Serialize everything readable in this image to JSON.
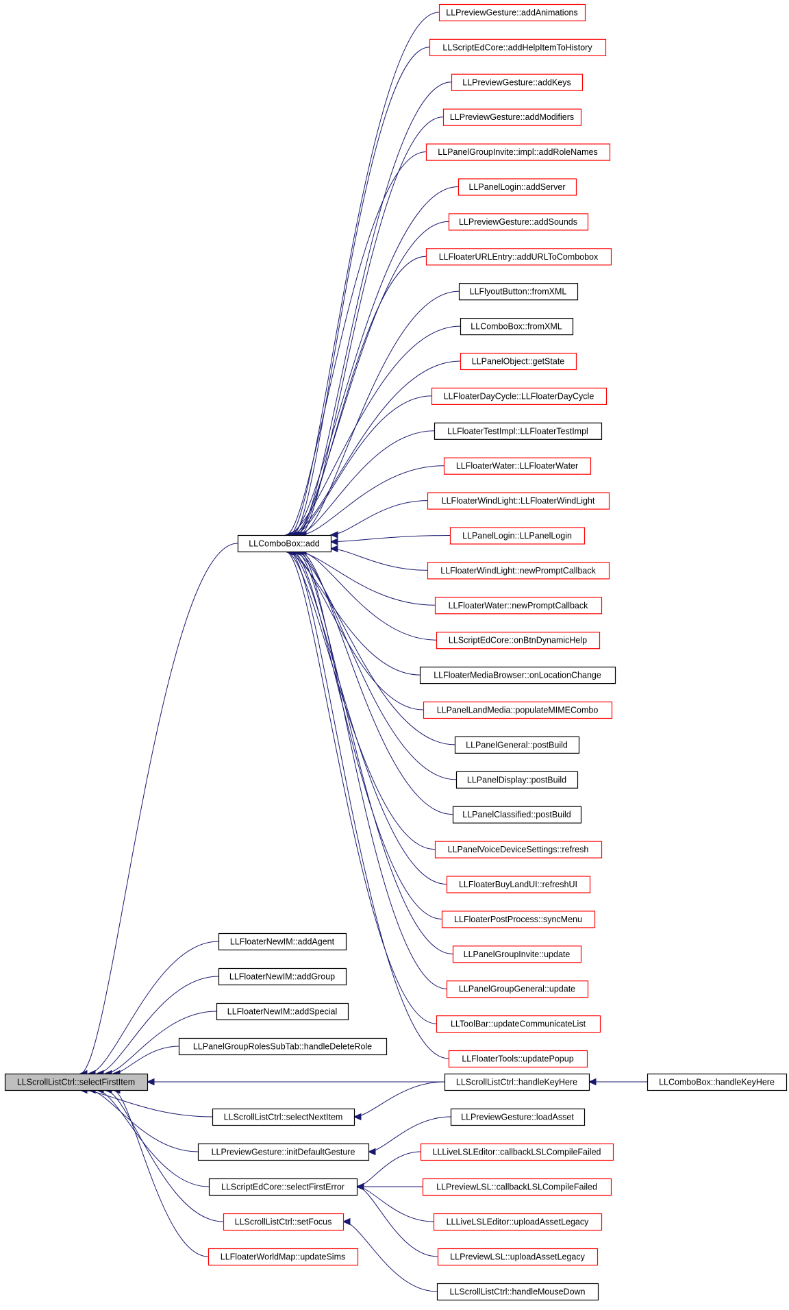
{
  "colors": {
    "edge": "#191970",
    "border_documented": "#000000",
    "border_undocumented": "#ff0000",
    "root_fill": "#bfbfbf"
  },
  "root": {
    "id": "root",
    "label": "LLScrollListCtrl::selectFirstItem",
    "border": "black"
  },
  "nodes": [
    {
      "id": "add",
      "label": "LLComboBox::add",
      "border": "black"
    },
    {
      "id": "c01",
      "label": "LLPreviewGesture::addAnimations",
      "border": "red"
    },
    {
      "id": "c02",
      "label": "LLScriptEdCore::addHelpItemToHistory",
      "border": "red"
    },
    {
      "id": "c03",
      "label": "LLPreviewGesture::addKeys",
      "border": "red"
    },
    {
      "id": "c04",
      "label": "LLPreviewGesture::addModifiers",
      "border": "red"
    },
    {
      "id": "c05",
      "label": "LLPanelGroupInvite::impl::addRoleNames",
      "border": "red"
    },
    {
      "id": "c06",
      "label": "LLPanelLogin::addServer",
      "border": "red"
    },
    {
      "id": "c07",
      "label": "LLPreviewGesture::addSounds",
      "border": "red"
    },
    {
      "id": "c08",
      "label": "LLFloaterURLEntry::addURLToCombobox",
      "border": "red"
    },
    {
      "id": "c09",
      "label": "LLFlyoutButton::fromXML",
      "border": "black"
    },
    {
      "id": "c10",
      "label": "LLComboBox::fromXML",
      "border": "black"
    },
    {
      "id": "c11",
      "label": "LLPanelObject::getState",
      "border": "red"
    },
    {
      "id": "c12",
      "label": "LLFloaterDayCycle::LLFloaterDayCycle",
      "border": "red"
    },
    {
      "id": "c13",
      "label": "LLFloaterTestImpl::LLFloaterTestImpl",
      "border": "black"
    },
    {
      "id": "c14",
      "label": "LLFloaterWater::LLFloaterWater",
      "border": "red"
    },
    {
      "id": "c15",
      "label": "LLFloaterWindLight::LLFloaterWindLight",
      "border": "red"
    },
    {
      "id": "c16",
      "label": "LLPanelLogin::LLPanelLogin",
      "border": "red"
    },
    {
      "id": "c17",
      "label": "LLFloaterWindLight::newPromptCallback",
      "border": "red"
    },
    {
      "id": "c18",
      "label": "LLFloaterWater::newPromptCallback",
      "border": "red"
    },
    {
      "id": "c19",
      "label": "LLScriptEdCore::onBtnDynamicHelp",
      "border": "red"
    },
    {
      "id": "c20",
      "label": "LLFloaterMediaBrowser::onLocationChange",
      "border": "black"
    },
    {
      "id": "c21",
      "label": "LLPanelLandMedia::populateMIMECombo",
      "border": "red"
    },
    {
      "id": "c22",
      "label": "LLPanelGeneral::postBuild",
      "border": "black"
    },
    {
      "id": "c23",
      "label": "LLPanelDisplay::postBuild",
      "border": "black"
    },
    {
      "id": "c24",
      "label": "LLPanelClassified::postBuild",
      "border": "black"
    },
    {
      "id": "c25",
      "label": "LLPanelVoiceDeviceSettings::refresh",
      "border": "red"
    },
    {
      "id": "c26",
      "label": "LLFloaterBuyLandUI::refreshUI",
      "border": "red"
    },
    {
      "id": "c27",
      "label": "LLFloaterPostProcess::syncMenu",
      "border": "red"
    },
    {
      "id": "c28",
      "label": "LLPanelGroupInvite::update",
      "border": "red"
    },
    {
      "id": "c29",
      "label": "LLPanelGroupGeneral::update",
      "border": "red"
    },
    {
      "id": "c30",
      "label": "LLToolBar::updateCommunicateList",
      "border": "red"
    },
    {
      "id": "c31",
      "label": "LLFloaterTools::updatePopup",
      "border": "red"
    },
    {
      "id": "agent",
      "label": "LLFloaterNewIM::addAgent",
      "border": "black"
    },
    {
      "id": "group",
      "label": "LLFloaterNewIM::addGroup",
      "border": "black"
    },
    {
      "id": "special",
      "label": "LLFloaterNewIM::addSpecial",
      "border": "black"
    },
    {
      "id": "delrole",
      "label": "LLPanelGroupRolesSubTab::handleDeleteRole",
      "border": "black"
    },
    {
      "id": "keyhere",
      "label": "LLScrollListCtrl::handleKeyHere",
      "border": "black"
    },
    {
      "id": "cbkey",
      "label": "LLComboBox::handleKeyHere",
      "border": "black"
    },
    {
      "id": "selnext",
      "label": "LLScrollListCtrl::selectNextItem",
      "border": "black"
    },
    {
      "id": "loadasset",
      "label": "LLPreviewGesture::loadAsset",
      "border": "black"
    },
    {
      "id": "initgest",
      "label": "LLPreviewGesture::initDefaultGesture",
      "border": "black"
    },
    {
      "id": "live1",
      "label": "LLLiveLSLEditor::callbackLSLCompileFailed",
      "border": "red"
    },
    {
      "id": "selerr",
      "label": "LLScriptEdCore::selectFirstError",
      "border": "black"
    },
    {
      "id": "prev1",
      "label": "LLPreviewLSL::callbackLSLCompileFailed",
      "border": "red"
    },
    {
      "id": "live2",
      "label": "LLLiveLSLEditor::uploadAssetLegacy",
      "border": "red"
    },
    {
      "id": "setfocus",
      "label": "LLScrollListCtrl::setFocus",
      "border": "red"
    },
    {
      "id": "prev2",
      "label": "LLPreviewLSL::uploadAssetLegacy",
      "border": "red"
    },
    {
      "id": "worldmap",
      "label": "LLFloaterWorldMap::updateSims",
      "border": "red"
    },
    {
      "id": "mousedown",
      "label": "LLScrollListCtrl::handleMouseDown",
      "border": "black"
    }
  ],
  "edges": [
    [
      "add",
      "root"
    ],
    [
      "agent",
      "root"
    ],
    [
      "group",
      "root"
    ],
    [
      "special",
      "root"
    ],
    [
      "delrole",
      "root"
    ],
    [
      "keyhere",
      "root"
    ],
    [
      "selnext",
      "root"
    ],
    [
      "initgest",
      "root"
    ],
    [
      "selerr",
      "root"
    ],
    [
      "setfocus",
      "root"
    ],
    [
      "worldmap",
      "root"
    ],
    [
      "c01",
      "add"
    ],
    [
      "c02",
      "add"
    ],
    [
      "c03",
      "add"
    ],
    [
      "c04",
      "add"
    ],
    [
      "c05",
      "add"
    ],
    [
      "c06",
      "add"
    ],
    [
      "c07",
      "add"
    ],
    [
      "c08",
      "add"
    ],
    [
      "c09",
      "add"
    ],
    [
      "c10",
      "add"
    ],
    [
      "c11",
      "add"
    ],
    [
      "c12",
      "add"
    ],
    [
      "c13",
      "add"
    ],
    [
      "c14",
      "add"
    ],
    [
      "c15",
      "add"
    ],
    [
      "c16",
      "add"
    ],
    [
      "c17",
      "add"
    ],
    [
      "c18",
      "add"
    ],
    [
      "c19",
      "add"
    ],
    [
      "c20",
      "add"
    ],
    [
      "c21",
      "add"
    ],
    [
      "c22",
      "add"
    ],
    [
      "c23",
      "add"
    ],
    [
      "c24",
      "add"
    ],
    [
      "c25",
      "add"
    ],
    [
      "c26",
      "add"
    ],
    [
      "c27",
      "add"
    ],
    [
      "c28",
      "add"
    ],
    [
      "c29",
      "add"
    ],
    [
      "c30",
      "add"
    ],
    [
      "c31",
      "add"
    ],
    [
      "cbkey",
      "keyhere"
    ],
    [
      "keyhere",
      "selnext"
    ],
    [
      "loadasset",
      "initgest"
    ],
    [
      "live1",
      "selerr"
    ],
    [
      "prev1",
      "selerr"
    ],
    [
      "live2",
      "selerr"
    ],
    [
      "prev2",
      "selerr"
    ],
    [
      "mousedown",
      "setfocus"
    ]
  ]
}
